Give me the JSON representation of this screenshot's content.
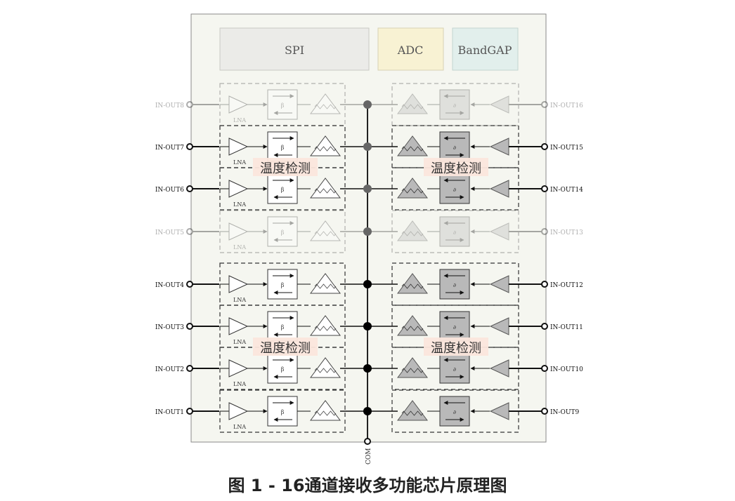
{
  "blocks": {
    "spi": "SPI",
    "adc": "ADC",
    "bandgap": "BandGAP"
  },
  "temp_label": "温度检测",
  "lna_label": "LNA",
  "beta_symbol": "β",
  "alpha_symbol": "∂",
  "com_label": "COM",
  "left_ports": [
    "IN-OUT8",
    "IN-OUT7",
    "IN-OUT6",
    "IN-OUT5",
    "IN-OUT4",
    "IN-OUT3",
    "IN-OUT2",
    "IN-OUT1"
  ],
  "right_ports": [
    "IN-OUT16",
    "IN-OUT15",
    "IN-OUT14",
    "IN-OUT13",
    "IN-OUT12",
    "IN-OUT11",
    "IN-OUT10",
    "IN-OUT9"
  ],
  "channel_faded": [
    true,
    false,
    false,
    true,
    false,
    false,
    false,
    false
  ],
  "caption": "图 1 - 16通道接收多功能芯片原理图",
  "colors": {
    "chip_bg": "#f5f6f0",
    "spi_bg": "#ebebe8",
    "adc_bg": "#f8f2d3",
    "bandgap_bg": "#e2efec",
    "temp_bg": "#fbe6dc",
    "right_fill": "#b9b9b9"
  }
}
